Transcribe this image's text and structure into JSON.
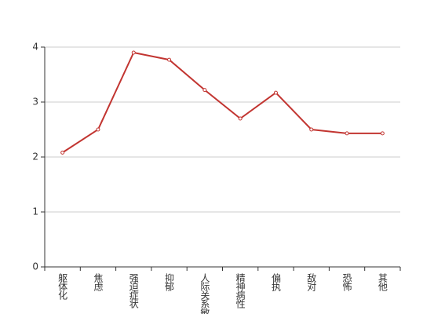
{
  "chart_data": {
    "type": "line",
    "categories": [
      "躯体化",
      "焦虑",
      "强迫症状",
      "抑郁",
      "人际关系敏感",
      "精神病性",
      "偏执",
      "敌对",
      "恐怖",
      "其他"
    ],
    "series": [
      {
        "name": "得分",
        "color": "#c23531",
        "values": [
          2.08,
          2.5,
          3.9,
          3.77,
          3.22,
          2.7,
          3.17,
          2.5,
          2.43,
          2.43
        ]
      }
    ],
    "ylim": [
      0,
      4
    ],
    "yticks": [
      0,
      1,
      2,
      3,
      4
    ],
    "grid": true
  }
}
